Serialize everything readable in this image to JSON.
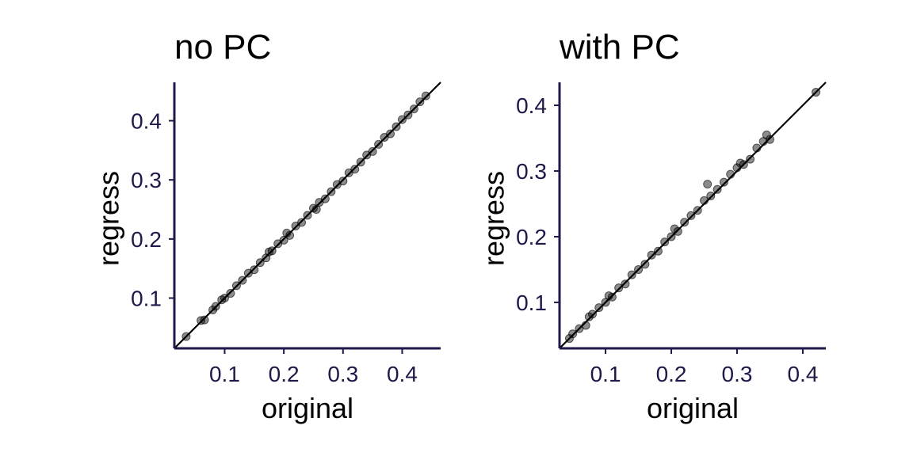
{
  "chart_data": [
    {
      "type": "scatter",
      "title": "no PC",
      "xlabel": "original",
      "ylabel": "regress",
      "xlim": [
        0.015,
        0.465
      ],
      "ylim": [
        0.015,
        0.465
      ],
      "xticks": [
        0.1,
        0.2,
        0.3,
        0.4
      ],
      "yticks": [
        0.1,
        0.2,
        0.3,
        0.4
      ],
      "xtick_labels": [
        "0.1",
        "0.2",
        "0.3",
        "0.4"
      ],
      "ytick_labels": [
        "0.1",
        "0.2",
        "0.3",
        "0.4"
      ],
      "reference_line": "y = x",
      "grid": false,
      "point_color": "#000000",
      "points": [
        [
          0.035,
          0.035
        ],
        [
          0.06,
          0.062
        ],
        [
          0.066,
          0.063
        ],
        [
          0.08,
          0.08
        ],
        [
          0.085,
          0.086
        ],
        [
          0.095,
          0.097
        ],
        [
          0.1,
          0.1
        ],
        [
          0.11,
          0.108
        ],
        [
          0.12,
          0.121
        ],
        [
          0.13,
          0.13
        ],
        [
          0.14,
          0.142
        ],
        [
          0.15,
          0.148
        ],
        [
          0.16,
          0.16
        ],
        [
          0.17,
          0.168
        ],
        [
          0.175,
          0.178
        ],
        [
          0.18,
          0.18
        ],
        [
          0.19,
          0.192
        ],
        [
          0.2,
          0.198
        ],
        [
          0.205,
          0.21
        ],
        [
          0.21,
          0.206
        ],
        [
          0.22,
          0.222
        ],
        [
          0.23,
          0.228
        ],
        [
          0.24,
          0.24
        ],
        [
          0.25,
          0.252
        ],
        [
          0.255,
          0.25
        ],
        [
          0.26,
          0.262
        ],
        [
          0.27,
          0.268
        ],
        [
          0.28,
          0.28
        ],
        [
          0.29,
          0.292
        ],
        [
          0.3,
          0.298
        ],
        [
          0.31,
          0.312
        ],
        [
          0.32,
          0.318
        ],
        [
          0.33,
          0.33
        ],
        [
          0.34,
          0.342
        ],
        [
          0.35,
          0.348
        ],
        [
          0.36,
          0.36
        ],
        [
          0.37,
          0.372
        ],
        [
          0.38,
          0.378
        ],
        [
          0.39,
          0.39
        ],
        [
          0.4,
          0.402
        ],
        [
          0.41,
          0.41
        ],
        [
          0.42,
          0.42
        ],
        [
          0.43,
          0.432
        ],
        [
          0.44,
          0.442
        ]
      ]
    },
    {
      "type": "scatter",
      "title": "with PC",
      "xlabel": "original",
      "ylabel": "regress",
      "xlim": [
        0.03,
        0.435
      ],
      "ylim": [
        0.03,
        0.435
      ],
      "xticks": [
        0.1,
        0.2,
        0.3,
        0.4
      ],
      "yticks": [
        0.1,
        0.2,
        0.3,
        0.4
      ],
      "xtick_labels": [
        "0.1",
        "0.2",
        "0.3",
        "0.4"
      ],
      "ytick_labels": [
        "0.1",
        "0.2",
        "0.3",
        "0.4"
      ],
      "reference_line": "y = x",
      "grid": false,
      "point_color": "#000000",
      "points": [
        [
          0.045,
          0.045
        ],
        [
          0.05,
          0.052
        ],
        [
          0.06,
          0.06
        ],
        [
          0.07,
          0.065
        ],
        [
          0.075,
          0.078
        ],
        [
          0.08,
          0.082
        ],
        [
          0.09,
          0.092
        ],
        [
          0.1,
          0.1
        ],
        [
          0.105,
          0.11
        ],
        [
          0.11,
          0.108
        ],
        [
          0.12,
          0.122
        ],
        [
          0.13,
          0.128
        ],
        [
          0.14,
          0.142
        ],
        [
          0.15,
          0.15
        ],
        [
          0.16,
          0.158
        ],
        [
          0.17,
          0.172
        ],
        [
          0.18,
          0.178
        ],
        [
          0.19,
          0.192
        ],
        [
          0.2,
          0.2
        ],
        [
          0.205,
          0.212
        ],
        [
          0.21,
          0.208
        ],
        [
          0.22,
          0.222
        ],
        [
          0.23,
          0.232
        ],
        [
          0.24,
          0.24
        ],
        [
          0.25,
          0.255
        ],
        [
          0.255,
          0.28
        ],
        [
          0.26,
          0.262
        ],
        [
          0.27,
          0.272
        ],
        [
          0.28,
          0.283
        ],
        [
          0.29,
          0.295
        ],
        [
          0.3,
          0.305
        ],
        [
          0.305,
          0.312
        ],
        [
          0.31,
          0.31
        ],
        [
          0.32,
          0.318
        ],
        [
          0.33,
          0.335
        ],
        [
          0.34,
          0.345
        ],
        [
          0.345,
          0.355
        ],
        [
          0.35,
          0.348
        ],
        [
          0.42,
          0.42
        ]
      ]
    }
  ]
}
